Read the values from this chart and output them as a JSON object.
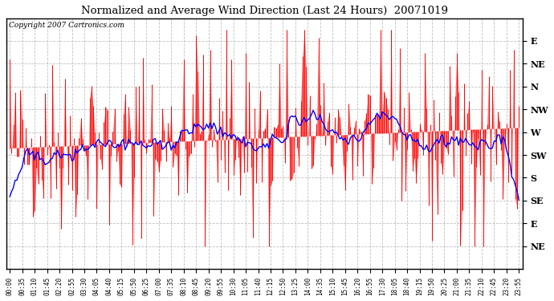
{
  "title": "Normalized and Average Wind Direction (Last 24 Hours)  20071019",
  "copyright": "Copyright 2007 Cartronics.com",
  "background_color": "#ffffff",
  "plot_bg_color": "#ffffff",
  "grid_color": "#c0c0c0",
  "red_color": "#ff0000",
  "blue_color": "#0000ff",
  "ytick_labels": [
    "E",
    "NE",
    "N",
    "NW",
    "W",
    "SW",
    "S",
    "SE",
    "E",
    "NE"
  ],
  "ytick_values": [
    10,
    9,
    8,
    7,
    6,
    5,
    4,
    3,
    2,
    1
  ],
  "ylim": [
    0.0,
    11.0
  ],
  "xtick_labels": [
    "00:00",
    "00:35",
    "01:10",
    "01:45",
    "02:20",
    "02:55",
    "03:30",
    "04:05",
    "04:40",
    "05:15",
    "05:50",
    "06:25",
    "07:00",
    "07:35",
    "08:10",
    "08:45",
    "09:20",
    "09:55",
    "10:30",
    "11:05",
    "11:40",
    "12:15",
    "12:50",
    "13:25",
    "14:00",
    "14:35",
    "15:10",
    "15:45",
    "16:20",
    "16:55",
    "17:30",
    "18:05",
    "18:40",
    "19:15",
    "19:50",
    "20:25",
    "21:00",
    "21:35",
    "22:10",
    "22:45",
    "23:20",
    "23:55"
  ],
  "n_points": 288,
  "seed": 42
}
